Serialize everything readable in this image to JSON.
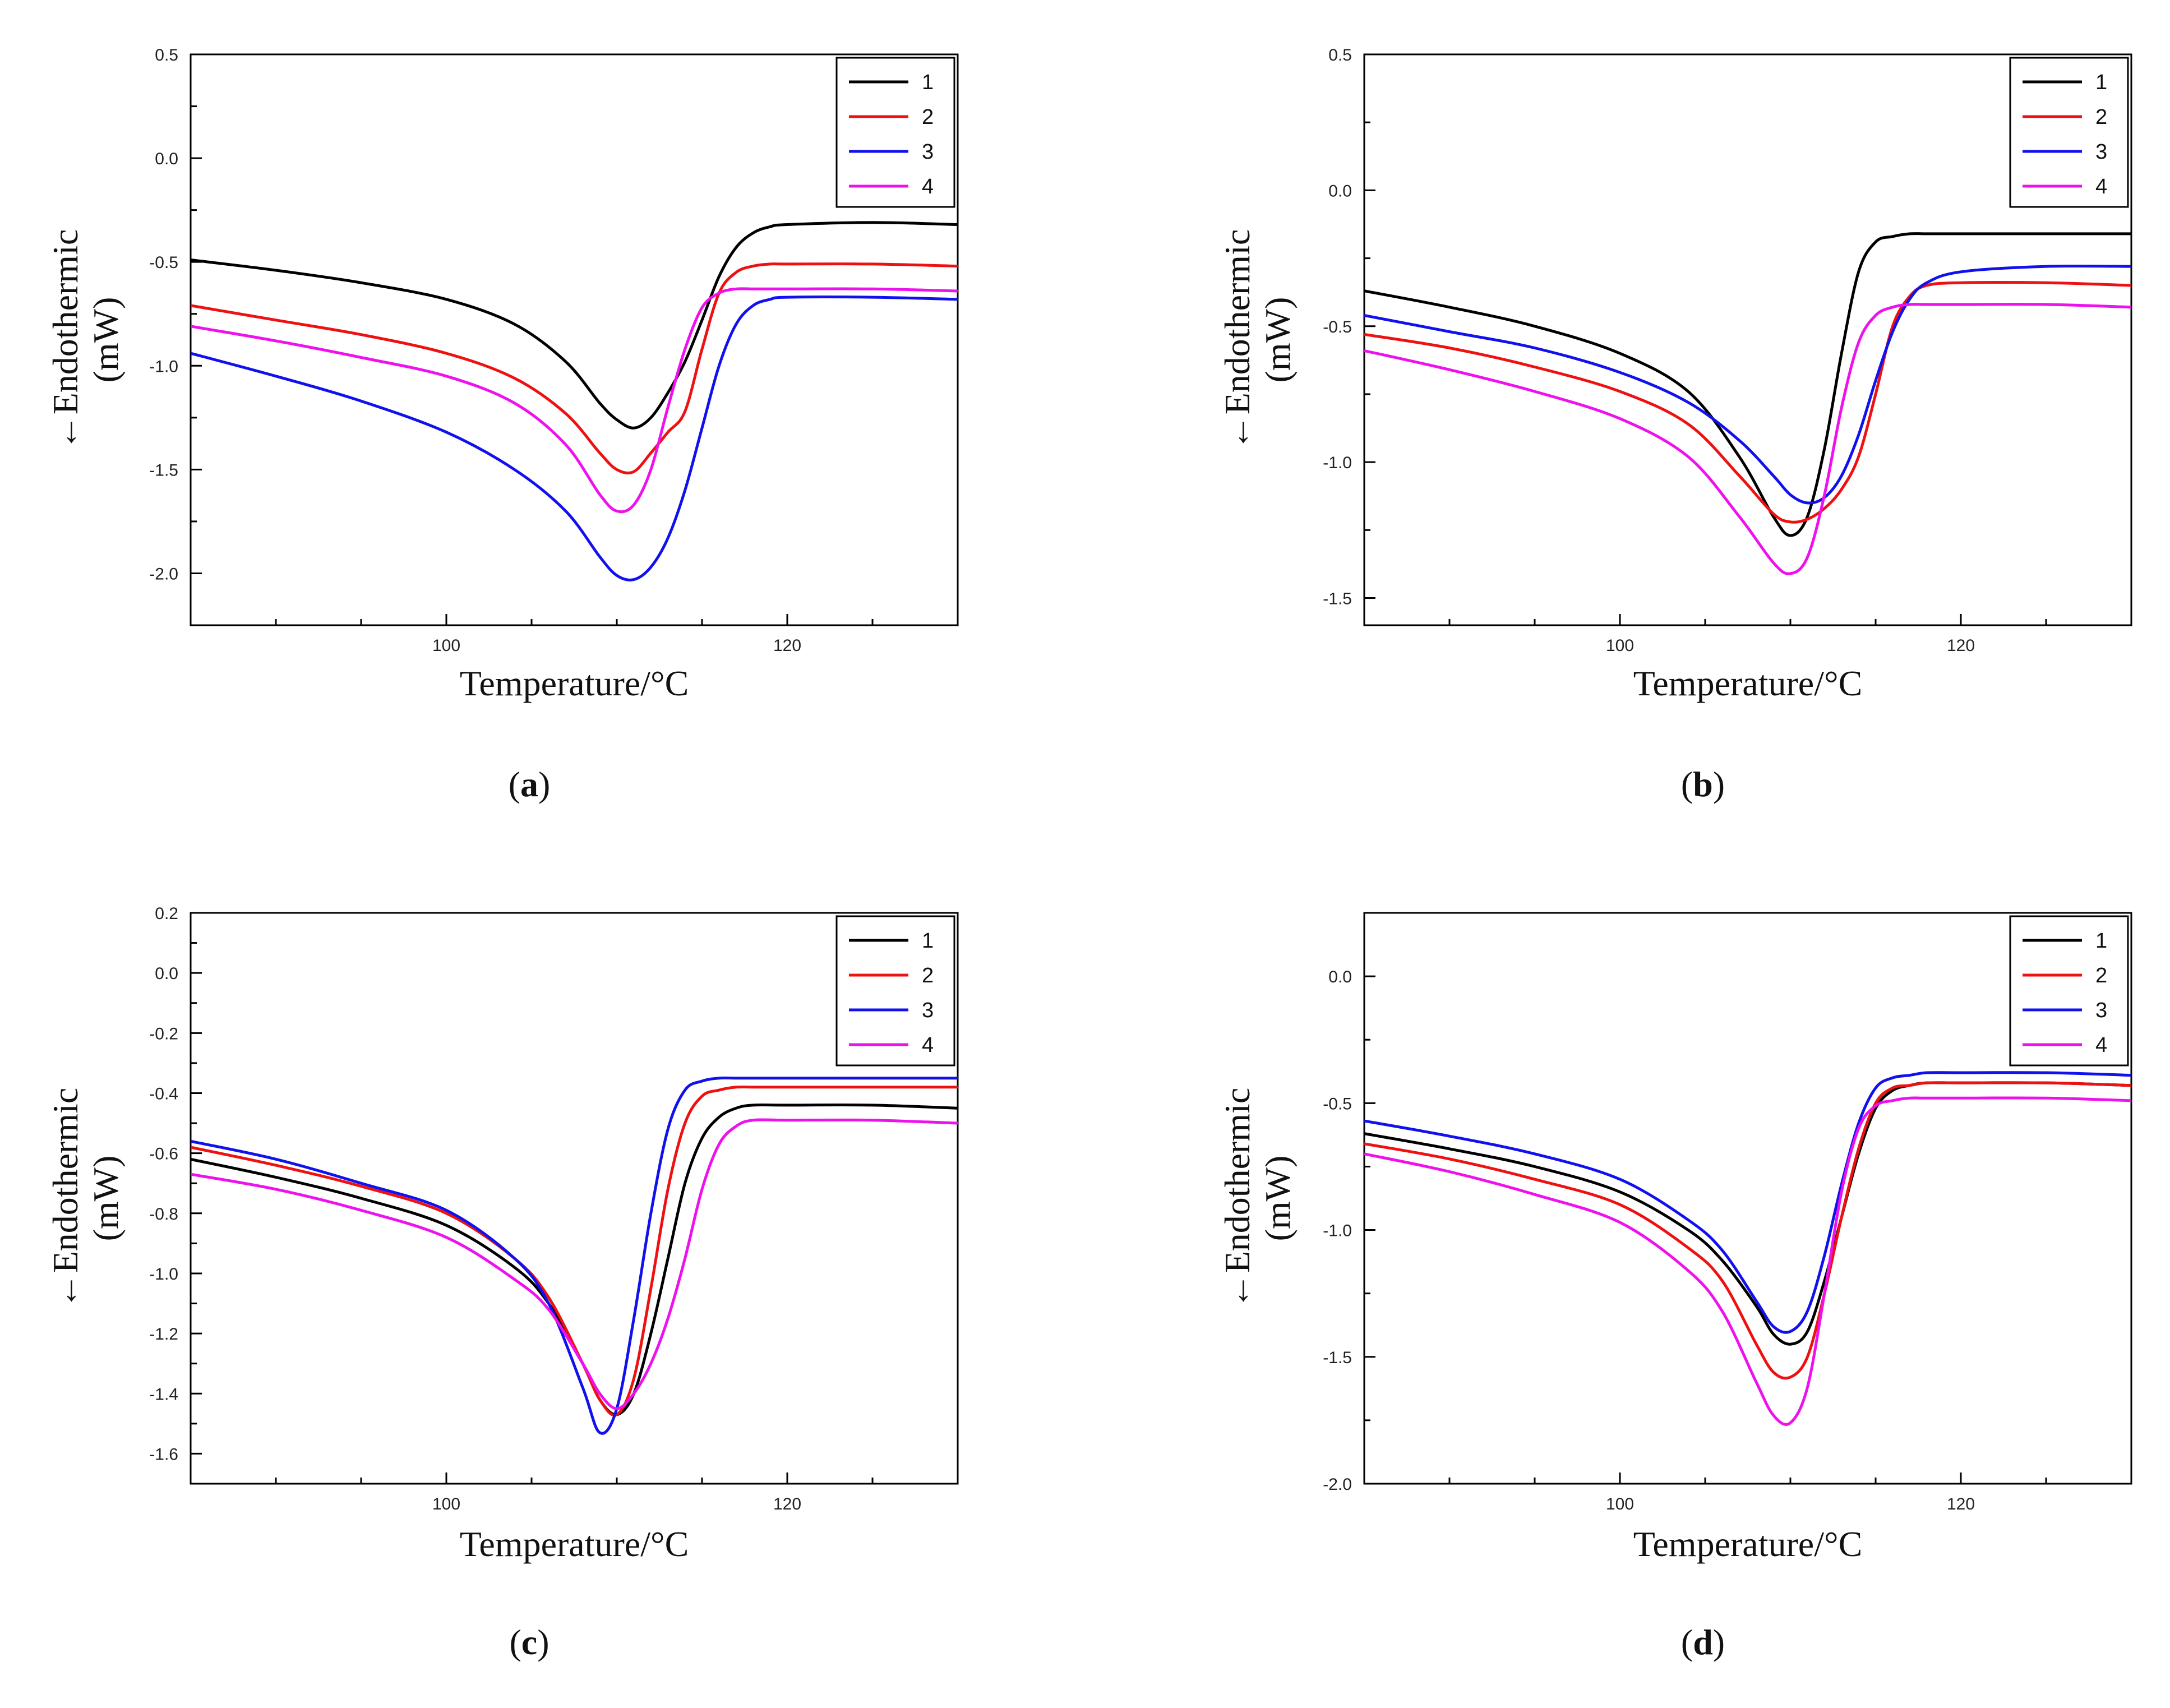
{
  "figure": {
    "ylabel_line1": "←Endothermic",
    "ylabel_line2": "(mW)",
    "xlabel": "Temperature/°C"
  },
  "chart_data": [
    {
      "type": "line",
      "panel_label": "a",
      "xlabel": "Temperature/°C",
      "ylabel": "←Endothermic (mW)",
      "xlim": [
        85,
        130
      ],
      "ylim": [
        -2.25,
        0.5
      ],
      "xticks": [
        100,
        120
      ],
      "yticks": [
        -2.0,
        -1.5,
        -1.0,
        -0.5,
        0.0,
        0.5
      ],
      "ytick_labels": [
        "-2.0",
        "-1.5",
        "-1.0",
        "-0.5",
        "0.0",
        "0.5"
      ],
      "legend": "top-right",
      "series": [
        {
          "name": "1",
          "color": "#000000",
          "x": [
            85,
            90,
            95,
            100,
            104,
            107,
            109,
            110,
            111,
            112,
            113,
            114,
            115,
            116,
            117,
            118,
            119,
            120,
            125,
            130
          ],
          "y": [
            -0.49,
            -0.54,
            -0.6,
            -0.68,
            -0.8,
            -0.98,
            -1.18,
            -1.26,
            -1.3,
            -1.25,
            -1.13,
            -0.98,
            -0.78,
            -0.57,
            -0.43,
            -0.36,
            -0.33,
            -0.32,
            -0.31,
            -0.32
          ]
        },
        {
          "name": "2",
          "color": "#ee1111",
          "x": [
            85,
            90,
            95,
            100,
            104,
            107,
            109,
            110,
            111,
            112,
            113,
            114,
            115,
            116,
            117,
            118,
            119,
            120,
            125,
            130
          ],
          "y": [
            -0.71,
            -0.78,
            -0.85,
            -0.94,
            -1.06,
            -1.23,
            -1.42,
            -1.5,
            -1.51,
            -1.42,
            -1.32,
            -1.22,
            -0.92,
            -0.65,
            -0.55,
            -0.52,
            -0.51,
            -0.51,
            -0.51,
            -0.52
          ]
        },
        {
          "name": "3",
          "color": "#1111ee",
          "x": [
            85,
            90,
            95,
            100,
            104,
            107,
            109,
            110,
            111,
            112,
            113,
            114,
            115,
            116,
            117,
            118,
            119,
            120,
            125,
            130
          ],
          "y": [
            -0.94,
            -1.05,
            -1.17,
            -1.32,
            -1.5,
            -1.7,
            -1.92,
            -2.01,
            -2.03,
            -1.97,
            -1.83,
            -1.6,
            -1.3,
            -1.0,
            -0.8,
            -0.71,
            -0.68,
            -0.67,
            -0.67,
            -0.68
          ]
        },
        {
          "name": "4",
          "color": "#ee11ee",
          "x": [
            85,
            90,
            95,
            100,
            104,
            107,
            109,
            110,
            111,
            112,
            113,
            114,
            115,
            116,
            117,
            118,
            119,
            120,
            125,
            130
          ],
          "y": [
            -0.81,
            -0.88,
            -0.96,
            -1.05,
            -1.18,
            -1.38,
            -1.62,
            -1.7,
            -1.67,
            -1.5,
            -1.2,
            -0.92,
            -0.72,
            -0.65,
            -0.63,
            -0.63,
            -0.63,
            -0.63,
            -0.63,
            -0.64
          ]
        }
      ]
    },
    {
      "type": "line",
      "panel_label": "b",
      "xlabel": "Temperature/°C",
      "ylabel": "←Endothermic (mW)",
      "xlim": [
        85,
        130
      ],
      "ylim": [
        -1.6,
        0.5
      ],
      "xticks": [
        100,
        120
      ],
      "yticks": [
        -1.5,
        -1.0,
        -0.5,
        0.0,
        0.5
      ],
      "ytick_labels": [
        "-1.5",
        "-1.0",
        "-0.5",
        "0.0",
        "0.5"
      ],
      "legend": "top-right",
      "series": [
        {
          "name": "1",
          "color": "#000000",
          "x": [
            85,
            90,
            95,
            100,
            104,
            107,
            109,
            110,
            111,
            112,
            113,
            114,
            115,
            116,
            117,
            118,
            120,
            125,
            130
          ],
          "y": [
            -0.37,
            -0.43,
            -0.5,
            -0.6,
            -0.74,
            -0.98,
            -1.2,
            -1.27,
            -1.2,
            -0.95,
            -0.6,
            -0.3,
            -0.19,
            -0.17,
            -0.16,
            -0.16,
            -0.16,
            -0.16,
            -0.16
          ]
        },
        {
          "name": "2",
          "color": "#ee1111",
          "x": [
            85,
            90,
            95,
            100,
            104,
            107,
            109,
            110,
            111,
            112,
            113,
            114,
            115,
            116,
            117,
            118,
            120,
            125,
            130
          ],
          "y": [
            -0.53,
            -0.58,
            -0.65,
            -0.74,
            -0.86,
            -1.05,
            -1.19,
            -1.22,
            -1.21,
            -1.17,
            -1.1,
            -0.98,
            -0.75,
            -0.5,
            -0.39,
            -0.35,
            -0.34,
            -0.34,
            -0.35
          ]
        },
        {
          "name": "3",
          "color": "#1111ee",
          "x": [
            85,
            90,
            95,
            100,
            104,
            107,
            109,
            110,
            111,
            112,
            113,
            114,
            115,
            116,
            117,
            118,
            120,
            125,
            130
          ],
          "y": [
            -0.46,
            -0.52,
            -0.58,
            -0.67,
            -0.78,
            -0.92,
            -1.05,
            -1.12,
            -1.15,
            -1.13,
            -1.05,
            -0.9,
            -0.7,
            -0.52,
            -0.4,
            -0.34,
            -0.3,
            -0.28,
            -0.28
          ]
        },
        {
          "name": "4",
          "color": "#ee11ee",
          "x": [
            85,
            90,
            95,
            100,
            104,
            107,
            109,
            110,
            111,
            112,
            113,
            114,
            115,
            116,
            117,
            118,
            120,
            125,
            130
          ],
          "y": [
            -0.59,
            -0.66,
            -0.74,
            -0.84,
            -0.98,
            -1.2,
            -1.37,
            -1.41,
            -1.35,
            -1.12,
            -0.8,
            -0.56,
            -0.46,
            -0.43,
            -0.42,
            -0.42,
            -0.42,
            -0.42,
            -0.43
          ]
        }
      ]
    },
    {
      "type": "line",
      "panel_label": "c",
      "xlabel": "Temperature/°C",
      "ylabel": "←Endothermic (mW)",
      "xlim": [
        85,
        130
      ],
      "ylim": [
        -1.7,
        0.2
      ],
      "xticks": [
        100,
        120
      ],
      "yticks": [
        -1.6,
        -1.4,
        -1.2,
        -1.0,
        -0.8,
        -0.6,
        -0.4,
        -0.2,
        0.0,
        0.2
      ],
      "ytick_labels": [
        "-1.6",
        "-1.4",
        "-1.2",
        "-1.0",
        "-0.8",
        "-0.6",
        "-0.4",
        "-0.2",
        "0.0",
        "0.2"
      ],
      "legend": "top-right",
      "series": [
        {
          "name": "1",
          "color": "#000000",
          "x": [
            85,
            90,
            95,
            100,
            104,
            106,
            108,
            109,
            110,
            111,
            112,
            113,
            114,
            115,
            116,
            117,
            118,
            120,
            125,
            130
          ],
          "y": [
            -0.62,
            -0.68,
            -0.75,
            -0.84,
            -0.98,
            -1.1,
            -1.3,
            -1.42,
            -1.47,
            -1.4,
            -1.2,
            -0.95,
            -0.7,
            -0.55,
            -0.48,
            -0.45,
            -0.44,
            -0.44,
            -0.44,
            -0.45
          ]
        },
        {
          "name": "2",
          "color": "#ee1111",
          "x": [
            85,
            90,
            95,
            100,
            104,
            106,
            108,
            109,
            110,
            111,
            112,
            113,
            114,
            115,
            116,
            117,
            118,
            120,
            125,
            130
          ],
          "y": [
            -0.58,
            -0.64,
            -0.71,
            -0.8,
            -0.95,
            -1.08,
            -1.3,
            -1.42,
            -1.47,
            -1.35,
            -1.05,
            -0.72,
            -0.5,
            -0.41,
            -0.39,
            -0.38,
            -0.38,
            -0.38,
            -0.38,
            -0.38
          ]
        },
        {
          "name": "3",
          "color": "#1111ee",
          "x": [
            85,
            90,
            95,
            100,
            104,
            106,
            108,
            109,
            110,
            111,
            112,
            113,
            114,
            115,
            116,
            117,
            118,
            120,
            125,
            130
          ],
          "y": [
            -0.56,
            -0.62,
            -0.7,
            -0.79,
            -0.95,
            -1.1,
            -1.38,
            -1.53,
            -1.45,
            -1.15,
            -0.8,
            -0.52,
            -0.39,
            -0.36,
            -0.35,
            -0.35,
            -0.35,
            -0.35,
            -0.35,
            -0.35
          ]
        },
        {
          "name": "4",
          "color": "#ee11ee",
          "x": [
            85,
            90,
            95,
            100,
            104,
            106,
            108,
            109,
            110,
            111,
            112,
            113,
            114,
            115,
            116,
            117,
            118,
            120,
            125,
            130
          ],
          "y": [
            -0.67,
            -0.72,
            -0.79,
            -0.88,
            -1.02,
            -1.12,
            -1.3,
            -1.4,
            -1.45,
            -1.4,
            -1.3,
            -1.15,
            -0.95,
            -0.72,
            -0.57,
            -0.51,
            -0.49,
            -0.49,
            -0.49,
            -0.5
          ]
        }
      ]
    },
    {
      "type": "line",
      "panel_label": "d",
      "xlabel": "Temperature/°C",
      "ylabel": "←Endothermic (mW)",
      "xlim": [
        85,
        130
      ],
      "ylim": [
        -2.0,
        0.25
      ],
      "xticks": [
        100,
        120
      ],
      "yticks": [
        -2.0,
        -1.5,
        -1.0,
        -0.5,
        0.0
      ],
      "ytick_labels": [
        "-2.0",
        "-1.5",
        "-1.0",
        "-0.5",
        "0.0"
      ],
      "legend": "top-right",
      "series": [
        {
          "name": "1",
          "color": "#000000",
          "x": [
            85,
            90,
            95,
            100,
            104,
            106,
            108,
            109,
            110,
            111,
            112,
            113,
            114,
            115,
            116,
            117,
            118,
            120,
            125,
            130
          ],
          "y": [
            -0.62,
            -0.68,
            -0.75,
            -0.85,
            -1.0,
            -1.12,
            -1.3,
            -1.41,
            -1.45,
            -1.4,
            -1.2,
            -0.95,
            -0.7,
            -0.52,
            -0.45,
            -0.43,
            -0.42,
            -0.42,
            -0.42,
            -0.43
          ]
        },
        {
          "name": "2",
          "color": "#ee1111",
          "x": [
            85,
            90,
            95,
            100,
            104,
            106,
            108,
            109,
            110,
            111,
            112,
            113,
            114,
            115,
            116,
            117,
            118,
            120,
            125,
            130
          ],
          "y": [
            -0.66,
            -0.72,
            -0.8,
            -0.9,
            -1.07,
            -1.2,
            -1.45,
            -1.56,
            -1.58,
            -1.5,
            -1.25,
            -0.95,
            -0.68,
            -0.5,
            -0.44,
            -0.43,
            -0.42,
            -0.42,
            -0.42,
            -0.43
          ]
        },
        {
          "name": "3",
          "color": "#1111ee",
          "x": [
            85,
            90,
            95,
            100,
            104,
            106,
            108,
            109,
            110,
            111,
            112,
            113,
            114,
            115,
            116,
            117,
            118,
            120,
            125,
            130
          ],
          "y": [
            -0.57,
            -0.63,
            -0.7,
            -0.8,
            -0.96,
            -1.08,
            -1.28,
            -1.38,
            -1.4,
            -1.32,
            -1.1,
            -0.82,
            -0.58,
            -0.44,
            -0.4,
            -0.39,
            -0.38,
            -0.38,
            -0.38,
            -0.39
          ]
        },
        {
          "name": "4",
          "color": "#ee11ee",
          "x": [
            85,
            90,
            95,
            100,
            104,
            106,
            108,
            109,
            110,
            111,
            112,
            113,
            114,
            115,
            116,
            117,
            118,
            120,
            125,
            130
          ],
          "y": [
            -0.7,
            -0.77,
            -0.86,
            -0.97,
            -1.16,
            -1.32,
            -1.6,
            -1.73,
            -1.76,
            -1.62,
            -1.25,
            -0.85,
            -0.6,
            -0.51,
            -0.49,
            -0.48,
            -0.48,
            -0.48,
            -0.48,
            -0.49
          ]
        }
      ]
    }
  ]
}
